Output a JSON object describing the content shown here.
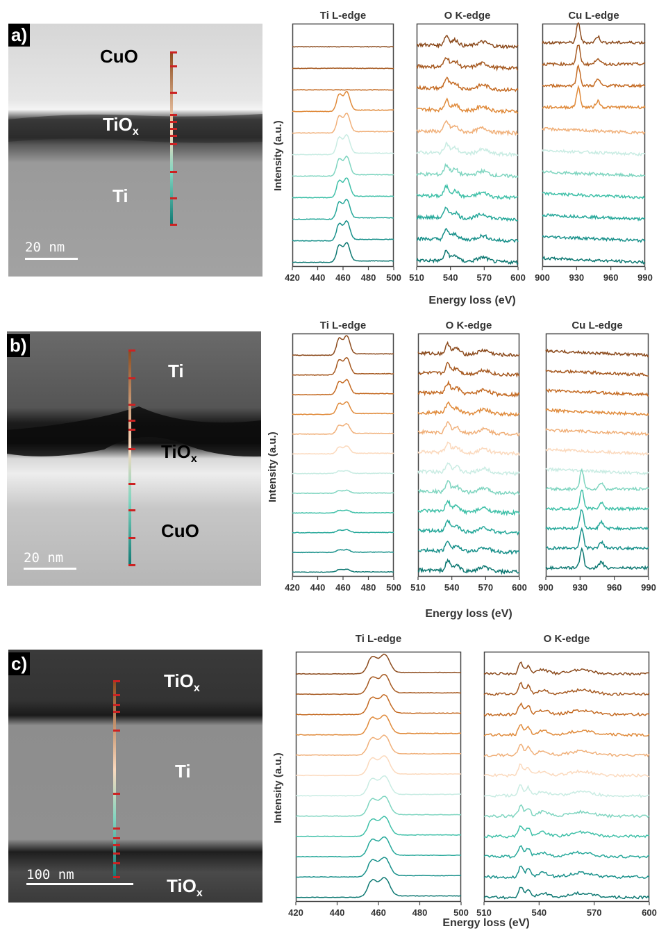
{
  "panels": [
    {
      "tag": "a)",
      "labels": [
        {
          "key": "cuo",
          "text": "CuO",
          "sub": ""
        },
        {
          "key": "tiox",
          "text": "TiO",
          "sub": "x"
        },
        {
          "key": "ti",
          "text": "Ti",
          "sub": ""
        }
      ],
      "scale_label": "20 nm",
      "xlabel": "Energy loss (eV)",
      "ylabel": "Intensity (a.u.)",
      "spectra": [
        {
          "title": "Ti L-edge",
          "ticks": [
            "420",
            "440",
            "460",
            "480",
            "500"
          ]
        },
        {
          "title": "O K-edge",
          "ticks": [
            "510",
            "540",
            "570",
            "600"
          ]
        },
        {
          "title": "Cu L-edge",
          "ticks": [
            "900",
            "930",
            "960",
            "990"
          ]
        }
      ]
    },
    {
      "tag": "b)",
      "labels": [
        {
          "key": "ti",
          "text": "Ti",
          "sub": ""
        },
        {
          "key": "tiox",
          "text": "TiO",
          "sub": "x"
        },
        {
          "key": "cuo",
          "text": "CuO",
          "sub": ""
        }
      ],
      "scale_label": "20 nm",
      "xlabel": "Energy loss (eV)",
      "ylabel": "Intensity (a.u.)",
      "spectra": [
        {
          "title": "Ti L-edge",
          "ticks": [
            "420",
            "440",
            "460",
            "480",
            "500"
          ]
        },
        {
          "title": "O K-edge",
          "ticks": [
            "510",
            "540",
            "570",
            "600"
          ]
        },
        {
          "title": "Cu L-edge",
          "ticks": [
            "900",
            "930",
            "960",
            "990"
          ]
        }
      ]
    },
    {
      "tag": "c)",
      "labels": [
        {
          "key": "tiox_top",
          "text": "TiO",
          "sub": "x"
        },
        {
          "key": "ti",
          "text": "Ti",
          "sub": ""
        },
        {
          "key": "tiox_bot",
          "text": "TiO",
          "sub": "x"
        }
      ],
      "scale_label": "100 nm",
      "xlabel": "Energy loss (eV)",
      "ylabel": "Intensity (a.u.)",
      "spectra": [
        {
          "title": "Ti L-edge",
          "ticks": [
            "420",
            "440",
            "460",
            "480",
            "500"
          ]
        },
        {
          "title": "O K-edge",
          "ticks": [
            "510",
            "540",
            "570",
            "600"
          ]
        }
      ]
    }
  ],
  "colors": {
    "gradient": [
      "#8b4a1c",
      "#a5581f",
      "#c46a22",
      "#e08a3a",
      "#f0b07a",
      "#fbd9bd",
      "#c9ece3",
      "#7fd5c0",
      "#3fc0a8",
      "#26a89a",
      "#17908a",
      "#0d7872"
    ],
    "marker": "#cc2222"
  },
  "chart_data": [
    {
      "type": "line",
      "title": "Ti L-edge",
      "xlabel": "Energy loss (eV)",
      "ylabel": "Intensity (a.u.)",
      "xlim": [
        420,
        500
      ],
      "n_spectra": 9,
      "peaks": [
        457,
        463
      ],
      "series_order": "top to bottom"
    },
    {
      "type": "line",
      "title": "O K-edge",
      "xlabel": "Energy loss (eV)",
      "ylabel": "Intensity (a.u.)",
      "xlim": [
        505,
        600
      ],
      "n_spectra": 11,
      "peaks": [
        532,
        539,
        569
      ]
    },
    {
      "type": "line",
      "title": "Cu L-edge",
      "xlabel": "Energy loss (eV)",
      "ylabel": "Intensity (a.u.)",
      "xlim": [
        900,
        1000
      ],
      "n_spectra": 11,
      "peaks": [
        934,
        953
      ]
    },
    {
      "type": "line",
      "title": "Ti L-edge",
      "xlabel": "Energy loss (eV)",
      "ylabel": "Intensity (a.u.)",
      "xlim": [
        420,
        500
      ],
      "n_spectra": 12,
      "peaks": [
        457,
        463
      ]
    },
    {
      "type": "line",
      "title": "O K-edge",
      "xlabel": "Energy loss (eV)",
      "ylabel": "Intensity (a.u.)",
      "xlim": [
        505,
        600
      ],
      "n_spectra": 12,
      "peaks": [
        532,
        539,
        565
      ]
    },
    {
      "type": "line",
      "title": "Cu L-edge",
      "xlabel": "Energy loss (eV)",
      "ylabel": "Intensity (a.u.)",
      "xlim": [
        900,
        1000
      ],
      "n_spectra": 12,
      "peaks": [
        934,
        953
      ]
    },
    {
      "type": "line",
      "title": "Ti L-edge",
      "xlabel": "Energy loss (eV)",
      "ylabel": "Intensity (a.u.)",
      "xlim": [
        420,
        500
      ],
      "n_spectra": 12,
      "peaks": [
        457,
        463
      ]
    },
    {
      "type": "line",
      "title": "O K-edge",
      "xlabel": "Energy loss (eV)",
      "ylabel": "Intensity (a.u.)",
      "xlim": [
        510,
        600
      ],
      "n_spectra": 12,
      "peaks": [
        531,
        534,
        542,
        562
      ]
    }
  ]
}
